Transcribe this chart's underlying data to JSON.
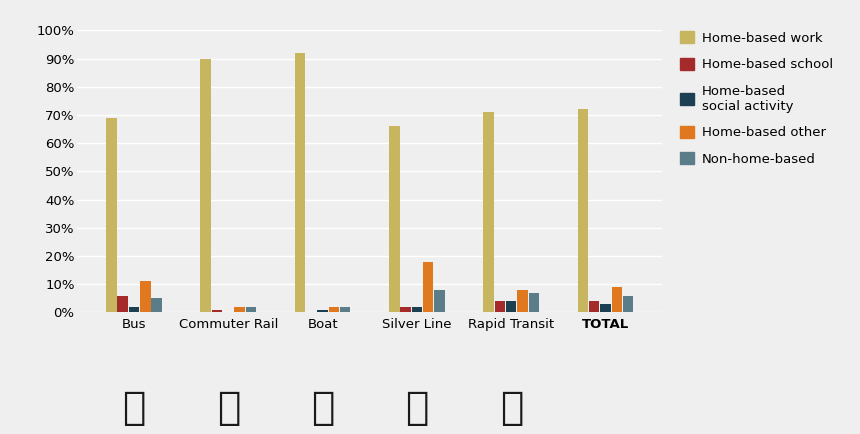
{
  "categories": [
    "Bus",
    "Commuter Rail",
    "Boat",
    "Silver Line",
    "Rapid Transit",
    "TOTAL"
  ],
  "series": {
    "Home-based work": [
      69,
      90,
      92,
      66,
      71,
      72
    ],
    "Home-based school": [
      6,
      1,
      0,
      2,
      4,
      4
    ],
    "Home-based\nsocial activity": [
      2,
      0,
      1,
      2,
      4,
      3
    ],
    "Home-based other": [
      11,
      2,
      2,
      18,
      8,
      9
    ],
    "Non-home-based": [
      5,
      2,
      2,
      8,
      7,
      6
    ]
  },
  "legend_labels": [
    "Home-based work",
    "Home-based school",
    "Home-based\nsocial activity",
    "Home-based other",
    "Non-home-based"
  ],
  "colors": {
    "Home-based work": "#C8B560",
    "Home-based school": "#A52A2A",
    "Home-based\nsocial activity": "#1C3F52",
    "Home-based other": "#E07820",
    "Non-home-based": "#5B7D8A"
  },
  "ylim": [
    0,
    100
  ],
  "ytick_labels": [
    "0%",
    "10%",
    "20%",
    "30%",
    "40%",
    "50%",
    "60%",
    "70%",
    "80%",
    "90%",
    "100%"
  ],
  "ytick_values": [
    0,
    10,
    20,
    30,
    40,
    50,
    60,
    70,
    80,
    90,
    100
  ],
  "background_color": "#EFEFEF",
  "grid_color": "#FFFFFF",
  "bar_width": 0.11,
  "legend_fontsize": 9.5,
  "tick_fontsize": 9.5,
  "label_fontsize": 9.5
}
